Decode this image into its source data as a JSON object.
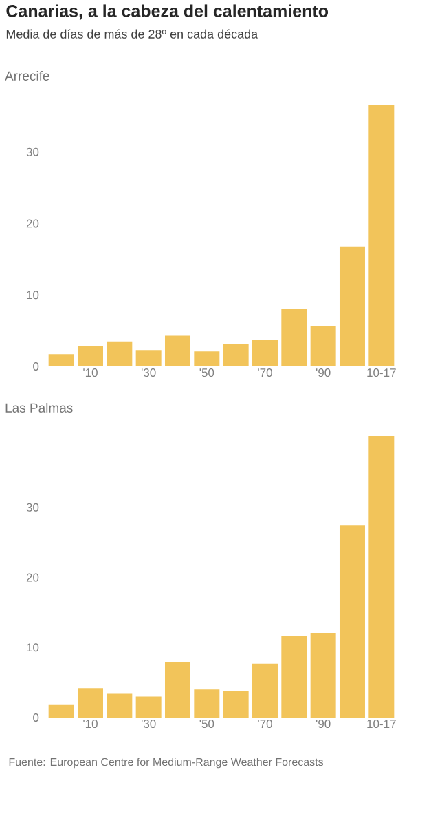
{
  "chart_data": [
    {
      "type": "bar",
      "title": "Arrecife",
      "annotations": [
        "Canarias, a la cabeza del calentamiento",
        "Media de días de más de 28º en cada década"
      ],
      "categories": [
        null,
        "'10",
        null,
        "'30",
        null,
        "'50",
        null,
        "'70",
        null,
        "'90",
        null,
        "10-17"
      ],
      "values": [
        1.7,
        2.9,
        3.5,
        2.3,
        4.3,
        2.1,
        3.1,
        3.7,
        8.0,
        5.6,
        16.8,
        36.6
      ],
      "color": "#f2c45a",
      "ylim": [
        0,
        37
      ],
      "yticks": [
        0,
        10,
        20,
        30
      ]
    },
    {
      "type": "bar",
      "title": "Las Palmas",
      "annotations": [
        "Fuente: European Centre for Medium-Range Weather Forecasts"
      ],
      "categories": [
        null,
        "'10",
        null,
        "'30",
        null,
        "'50",
        null,
        "'70",
        null,
        "'90",
        null,
        "10-17"
      ],
      "values": [
        1.9,
        4.2,
        3.4,
        3.0,
        7.9,
        4.0,
        3.8,
        7.7,
        11.6,
        12.1,
        27.4,
        40.2
      ],
      "color": "#f2c45a",
      "ylim": [
        0,
        40.5
      ],
      "yticks": [
        0,
        10,
        20,
        30
      ]
    }
  ]
}
